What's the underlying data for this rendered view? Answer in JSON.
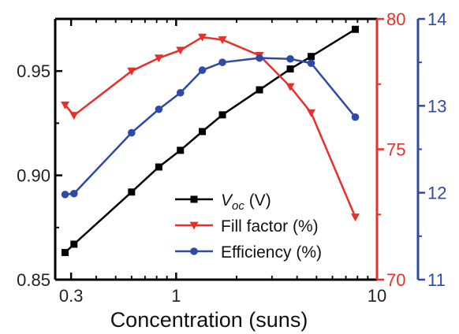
{
  "chart_data": {
    "type": "line",
    "title": "",
    "xlabel": "Concentration (suns)",
    "x_scale": "log",
    "xlim": [
      0.25,
      10
    ],
    "x_ticks": [
      0.3,
      1,
      10
    ],
    "x_tick_labels": [
      "0.3",
      "1",
      "10"
    ],
    "x": [
      0.28,
      0.31,
      0.6,
      0.82,
      1.05,
      1.35,
      1.7,
      2.6,
      3.7,
      4.7,
      7.8
    ],
    "axes": {
      "left": {
        "ylim": [
          0.85,
          0.975
        ],
        "ticks": [
          0.85,
          0.9,
          0.95
        ],
        "tick_labels": [
          "0.85",
          "0.90",
          "0.95"
        ],
        "color": "#000000"
      },
      "right1": {
        "ylim": [
          70,
          80
        ],
        "ticks": [
          70,
          75,
          80
        ],
        "tick_labels": [
          "70",
          "75",
          "80"
        ],
        "color": "#e8302a"
      },
      "right2": {
        "ylim": [
          11,
          14
        ],
        "ticks": [
          11,
          12,
          13,
          14
        ],
        "tick_labels": [
          "11",
          "12",
          "13",
          "14"
        ],
        "color": "#2f49a6"
      }
    },
    "legend_position": "bottom-right",
    "series": [
      {
        "name_main": "V",
        "name_sub": "oc",
        "name_rest": " (V)",
        "axis": "left",
        "color": "#000000",
        "marker": "square",
        "values": [
          0.863,
          0.867,
          0.892,
          0.904,
          0.912,
          0.921,
          0.929,
          0.941,
          0.951,
          0.957,
          0.97
        ]
      },
      {
        "name": "Fill factor (%)",
        "axis": "right1",
        "color": "#e8302a",
        "marker": "triangle-down",
        "values": [
          76.7,
          76.3,
          78.0,
          78.5,
          78.8,
          79.3,
          79.2,
          78.6,
          77.4,
          76.4,
          72.4
        ]
      },
      {
        "name": "Efficiency (%)",
        "axis": "right2",
        "color": "#2f49a6",
        "marker": "circle",
        "values": [
          11.98,
          11.99,
          12.69,
          12.96,
          13.15,
          13.41,
          13.5,
          13.55,
          13.54,
          13.49,
          12.87
        ]
      }
    ]
  }
}
